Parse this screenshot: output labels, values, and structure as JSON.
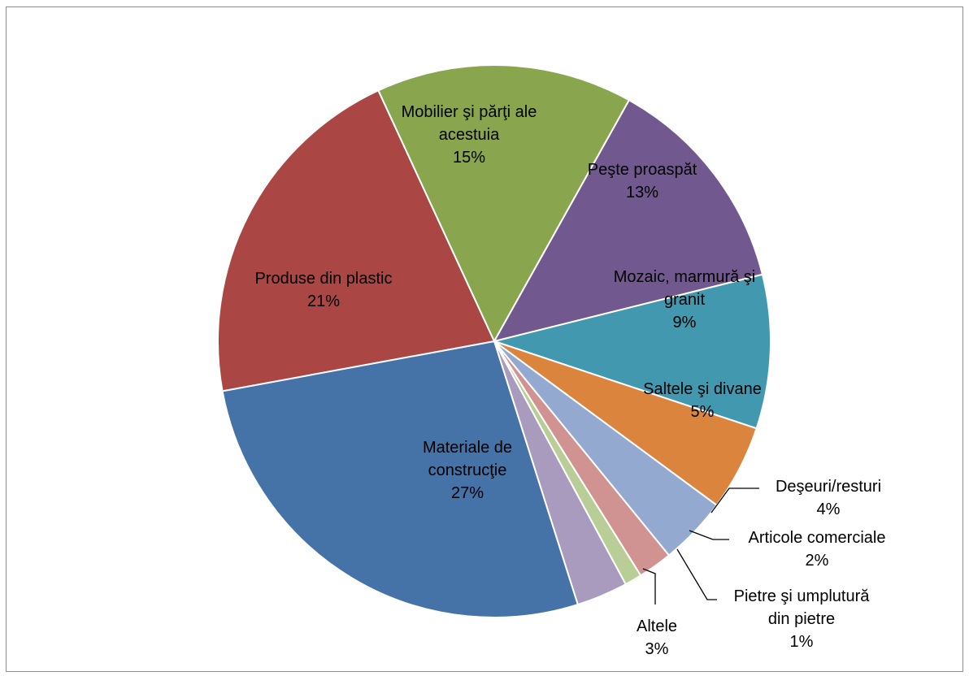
{
  "chart_data": {
    "type": "pie",
    "title": "",
    "slices": [
      {
        "name": "Mozaic, marmură şi granit",
        "label_lines": [
          "Mozaic, marmură şi",
          "granit"
        ],
        "pct_label": "9%",
        "value": 9,
        "color": "#4198AF"
      },
      {
        "name": "Saltele şi divane",
        "label_lines": [
          "Saltele şi divane"
        ],
        "pct_label": "5%",
        "value": 5,
        "color": "#DB843D"
      },
      {
        "name": "Deşeuri/resturi",
        "label_lines": [
          "Deşeuri/resturi"
        ],
        "pct_label": "4%",
        "value": 4,
        "color": "#93A9CF"
      },
      {
        "name": "Articole comerciale",
        "label_lines": [
          "Articole comerciale"
        ],
        "pct_label": "2%",
        "value": 2,
        "color": "#D19392"
      },
      {
        "name": "Pietre şi umplutură din pietre",
        "label_lines": [
          "Pietre şi umplutură",
          "din pietre"
        ],
        "pct_label": "1%",
        "value": 1,
        "color": "#B9CD96"
      },
      {
        "name": "Altele",
        "label_lines": [
          "Altele"
        ],
        "pct_label": "3%",
        "value": 3,
        "color": "#A99BBD"
      },
      {
        "name": "Materiale de construcţie",
        "label_lines": [
          "Materiale de",
          "construcţie"
        ],
        "pct_label": "27%",
        "value": 27,
        "color": "#4572A7"
      },
      {
        "name": "Produse din plastic",
        "label_lines": [
          "Produse din plastic"
        ],
        "pct_label": "21%",
        "value": 21,
        "color": "#AA4643"
      },
      {
        "name": "Mobilier şi părţi ale acestuia",
        "label_lines": [
          "Mobilier şi părţi ale",
          "acestuia"
        ],
        "pct_label": "15%",
        "value": 15,
        "color": "#89A54E"
      },
      {
        "name": "Peşte proaspăt",
        "label_lines": [
          "Peşte proaspăt"
        ],
        "pct_label": "13%",
        "value": 13,
        "color": "#71588F"
      }
    ]
  }
}
